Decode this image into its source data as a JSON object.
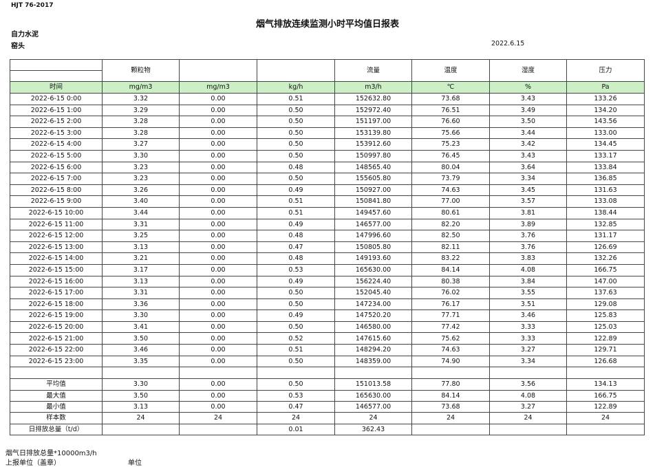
{
  "header": {
    "standard": "HJT  76-2017",
    "title": "烟气排放连续监测小时平均值日报表",
    "company": "自力水泥",
    "location": "窑头",
    "date": "2022.6.15"
  },
  "table": {
    "columns": [
      "颗粒物",
      null,
      null,
      "流量",
      "温度",
      "湿度",
      "压力"
    ],
    "units": [
      "时间",
      "mg/m3",
      "mg/m3",
      "kg/h",
      "m3/h",
      "℃",
      "%",
      "Pa"
    ],
    "rows": [
      [
        "2022-6-15 0:00",
        "3.32",
        "0.00",
        "0.51",
        "152632.80",
        "73.68",
        "3.43",
        "133.26"
      ],
      [
        "2022-6-15 1:00",
        "3.29",
        "0.00",
        "0.50",
        "152972.40",
        "76.51",
        "3.49",
        "134.20"
      ],
      [
        "2022-6-15 2:00",
        "3.28",
        "0.00",
        "0.50",
        "151197.00",
        "76.60",
        "3.50",
        "143.56"
      ],
      [
        "2022-6-15 3:00",
        "3.28",
        "0.00",
        "0.50",
        "153139.80",
        "75.66",
        "3.44",
        "133.00"
      ],
      [
        "2022-6-15 4:00",
        "3.27",
        "0.00",
        "0.50",
        "153912.60",
        "75.23",
        "3.42",
        "134.45"
      ],
      [
        "2022-6-15 5:00",
        "3.30",
        "0.00",
        "0.50",
        "150997.80",
        "76.45",
        "3.43",
        "133.17"
      ],
      [
        "2022-6-15 6:00",
        "3.23",
        "0.00",
        "0.48",
        "148565.40",
        "80.04",
        "3.64",
        "133.84"
      ],
      [
        "2022-6-15 7:00",
        "3.23",
        "0.00",
        "0.50",
        "155605.80",
        "73.79",
        "3.34",
        "136.85"
      ],
      [
        "2022-6-15 8:00",
        "3.26",
        "0.00",
        "0.49",
        "150927.00",
        "74.63",
        "3.45",
        "131.63"
      ],
      [
        "2022-6-15 9:00",
        "3.40",
        "0.00",
        "0.51",
        "150841.80",
        "77.00",
        "3.57",
        "133.08"
      ],
      [
        "2022-6-15 10:00",
        "3.44",
        "0.00",
        "0.51",
        "149457.60",
        "80.61",
        "3.81",
        "138.44"
      ],
      [
        "2022-6-15 11:00",
        "3.31",
        "0.00",
        "0.49",
        "146577.00",
        "82.20",
        "3.89",
        "132.85"
      ],
      [
        "2022-6-15 12:00",
        "3.25",
        "0.00",
        "0.48",
        "147996.60",
        "82.50",
        "3.76",
        "131.17"
      ],
      [
        "2022-6-15 13:00",
        "3.13",
        "0.00",
        "0.47",
        "150805.80",
        "82.11",
        "3.76",
        "126.69"
      ],
      [
        "2022-6-15 14:00",
        "3.21",
        "0.00",
        "0.48",
        "149193.60",
        "83.22",
        "3.83",
        "132.26"
      ],
      [
        "2022-6-15 15:00",
        "3.17",
        "0.00",
        "0.53",
        "165630.00",
        "84.14",
        "4.08",
        "166.75"
      ],
      [
        "2022-6-15 16:00",
        "3.13",
        "0.00",
        "0.49",
        "156224.40",
        "80.38",
        "3.84",
        "147.00"
      ],
      [
        "2022-6-15 17:00",
        "3.31",
        "0.00",
        "0.50",
        "152045.40",
        "76.02",
        "3.55",
        "137.63"
      ],
      [
        "2022-6-15 18:00",
        "3.36",
        "0.00",
        "0.50",
        "147234.00",
        "76.17",
        "3.51",
        "129.08"
      ],
      [
        "2022-6-15 19:00",
        "3.30",
        "0.00",
        "0.49",
        "147520.20",
        "77.71",
        "3.46",
        "125.83"
      ],
      [
        "2022-6-15 20:00",
        "3.41",
        "0.00",
        "0.50",
        "146580.00",
        "77.42",
        "3.33",
        "125.03"
      ],
      [
        "2022-6-15 21:00",
        "3.50",
        "0.00",
        "0.52",
        "147615.60",
        "75.62",
        "3.33",
        "122.89"
      ],
      [
        "2022-6-15 22:00",
        "3.46",
        "0.00",
        "0.51",
        "148294.20",
        "74.63",
        "3.27",
        "129.71"
      ],
      [
        "2022-6-15 23:00",
        "3.35",
        "0.00",
        "0.50",
        "148359.00",
        "74.90",
        "3.34",
        "126.68"
      ]
    ],
    "summary": [
      [
        "平均值",
        "3.30",
        "0.00",
        "0.50",
        "151013.58",
        "77.80",
        "3.56",
        "134.13"
      ],
      [
        "最大值",
        "3.50",
        "0.00",
        "0.53",
        "165630.00",
        "84.14",
        "4.08",
        "166.75"
      ],
      [
        "最小值",
        "3.13",
        "0.00",
        "0.47",
        "146577.00",
        "73.68",
        "3.27",
        "122.89"
      ],
      [
        "样本数",
        "24",
        "24",
        "24",
        "24",
        "24",
        "24",
        "24"
      ],
      [
        "日排放总量（t/d）",
        null,
        null,
        "0.01",
        "362.43",
        null,
        null,
        null
      ]
    ]
  },
  "footer": {
    "total_note": "烟气日排放总量*10000m3/h",
    "report_unit": "上报单位（盖章）",
    "unit": "单位"
  }
}
